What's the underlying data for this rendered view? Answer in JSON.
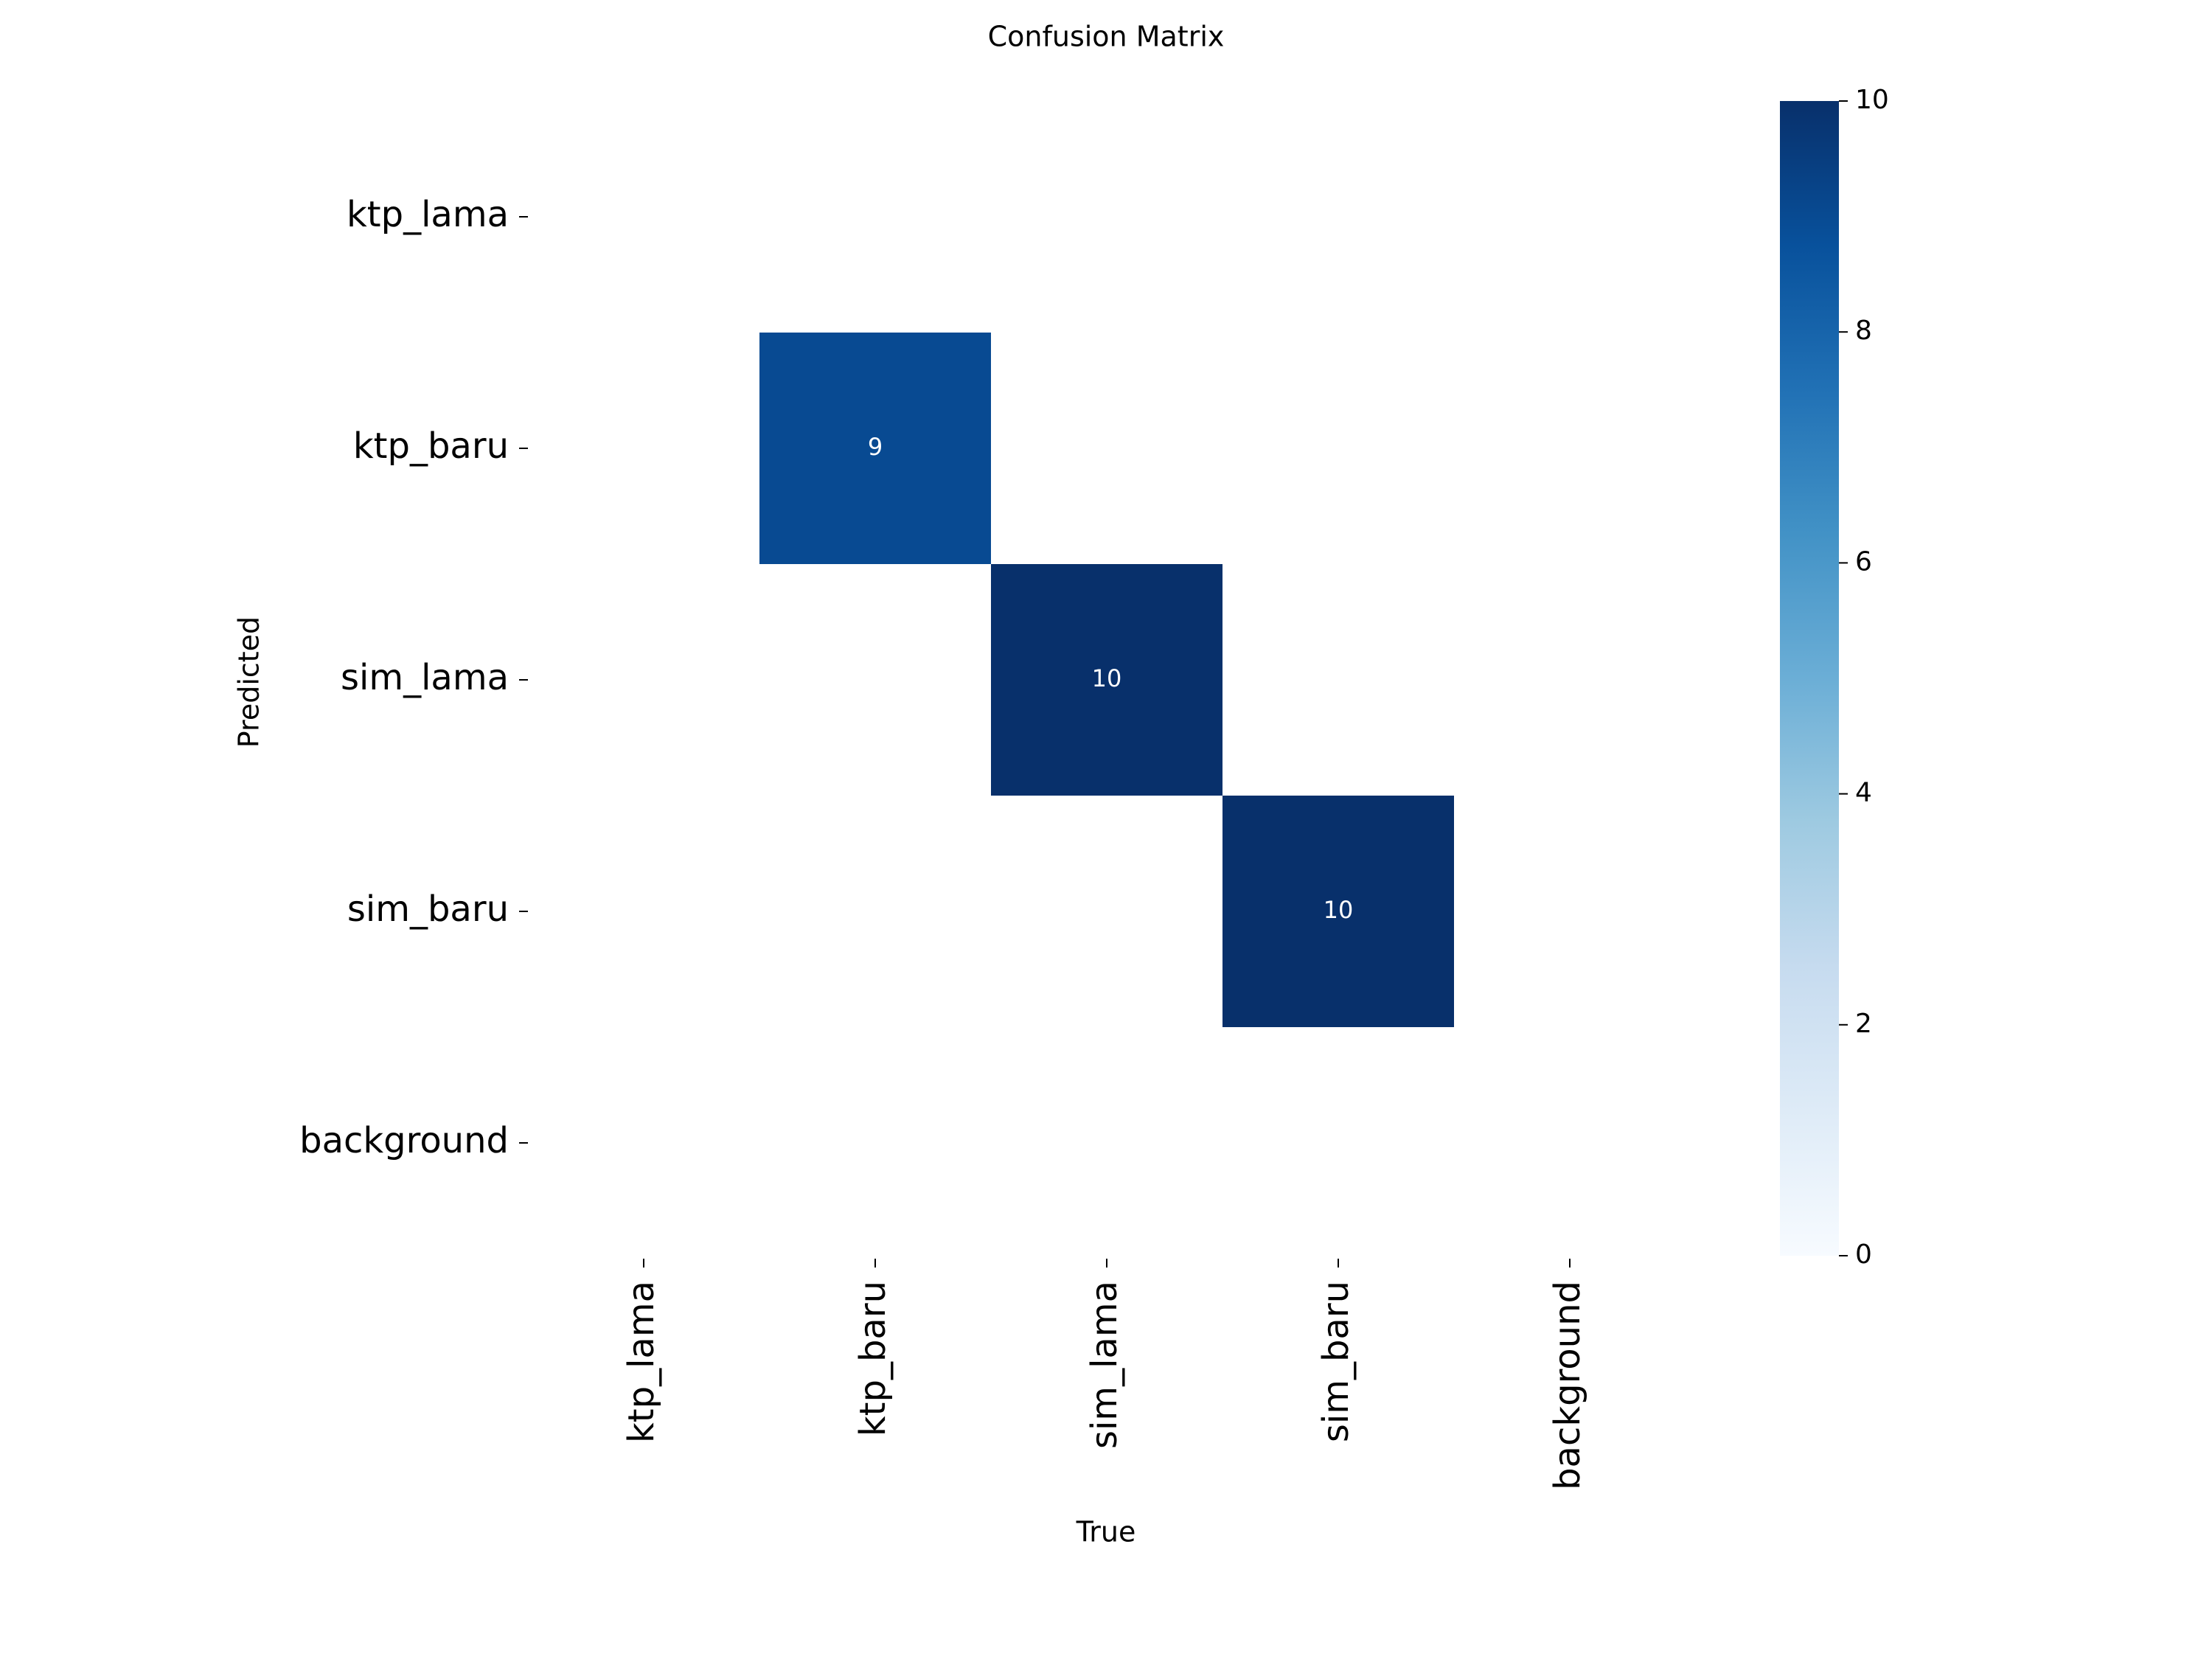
{
  "chart_data": {
    "type": "heatmap",
    "title": "Confusion Matrix",
    "xlabel": "True",
    "ylabel": "Predicted",
    "x_categories": [
      "ktp_lama",
      "ktp_baru",
      "sim_lama",
      "sim_baru",
      "background"
    ],
    "y_categories": [
      "ktp_lama",
      "ktp_baru",
      "sim_lama",
      "sim_baru",
      "background"
    ],
    "matrix": [
      [
        null,
        null,
        null,
        null,
        null
      ],
      [
        null,
        9,
        null,
        null,
        null
      ],
      [
        null,
        null,
        10,
        null,
        null
      ],
      [
        null,
        null,
        null,
        10,
        null
      ],
      [
        null,
        null,
        null,
        null,
        null
      ]
    ],
    "colorbar": {
      "colormap": "Blues",
      "min": 0,
      "max": 10,
      "ticks": [
        "0",
        "2",
        "4",
        "6",
        "8",
        "10"
      ]
    },
    "colors": {
      "low": "#f7fbff",
      "high": "#08306b",
      "cell_text": "#ffffff"
    }
  }
}
